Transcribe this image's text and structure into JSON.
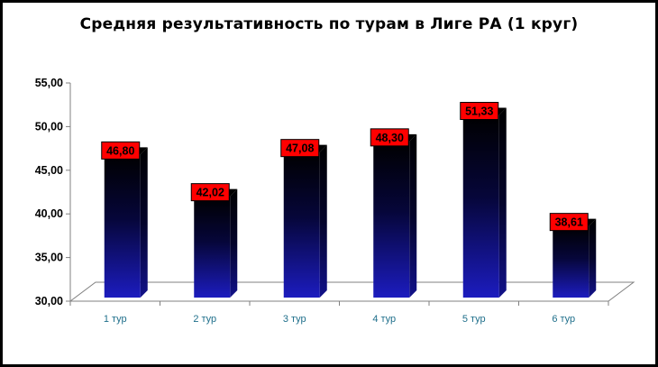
{
  "chart_data": {
    "type": "bar",
    "title": "Средняя результативность по турам в Лиге РА (1 круг)",
    "categories": [
      "1 тур",
      "2 тур",
      "3 тур",
      "4 тур",
      "5 тур",
      "6 тур"
    ],
    "values": [
      46.8,
      42.02,
      47.08,
      48.3,
      51.33,
      38.61
    ],
    "value_labels": [
      "46,80",
      "42,02",
      "47,08",
      "48,30",
      "51,33",
      "38,61"
    ],
    "y_ticks": [
      "30,00",
      "35,00",
      "40,00",
      "45,00",
      "50,00",
      "55,00"
    ],
    "ylim": [
      30,
      55
    ],
    "xlabel": "",
    "ylabel": "",
    "grid": false,
    "legend": "none",
    "colors": {
      "bar_top": "#000000",
      "bar_bottom": "#1a1ab8",
      "label_fill": "#ff0000",
      "label_border": "#000000"
    }
  }
}
